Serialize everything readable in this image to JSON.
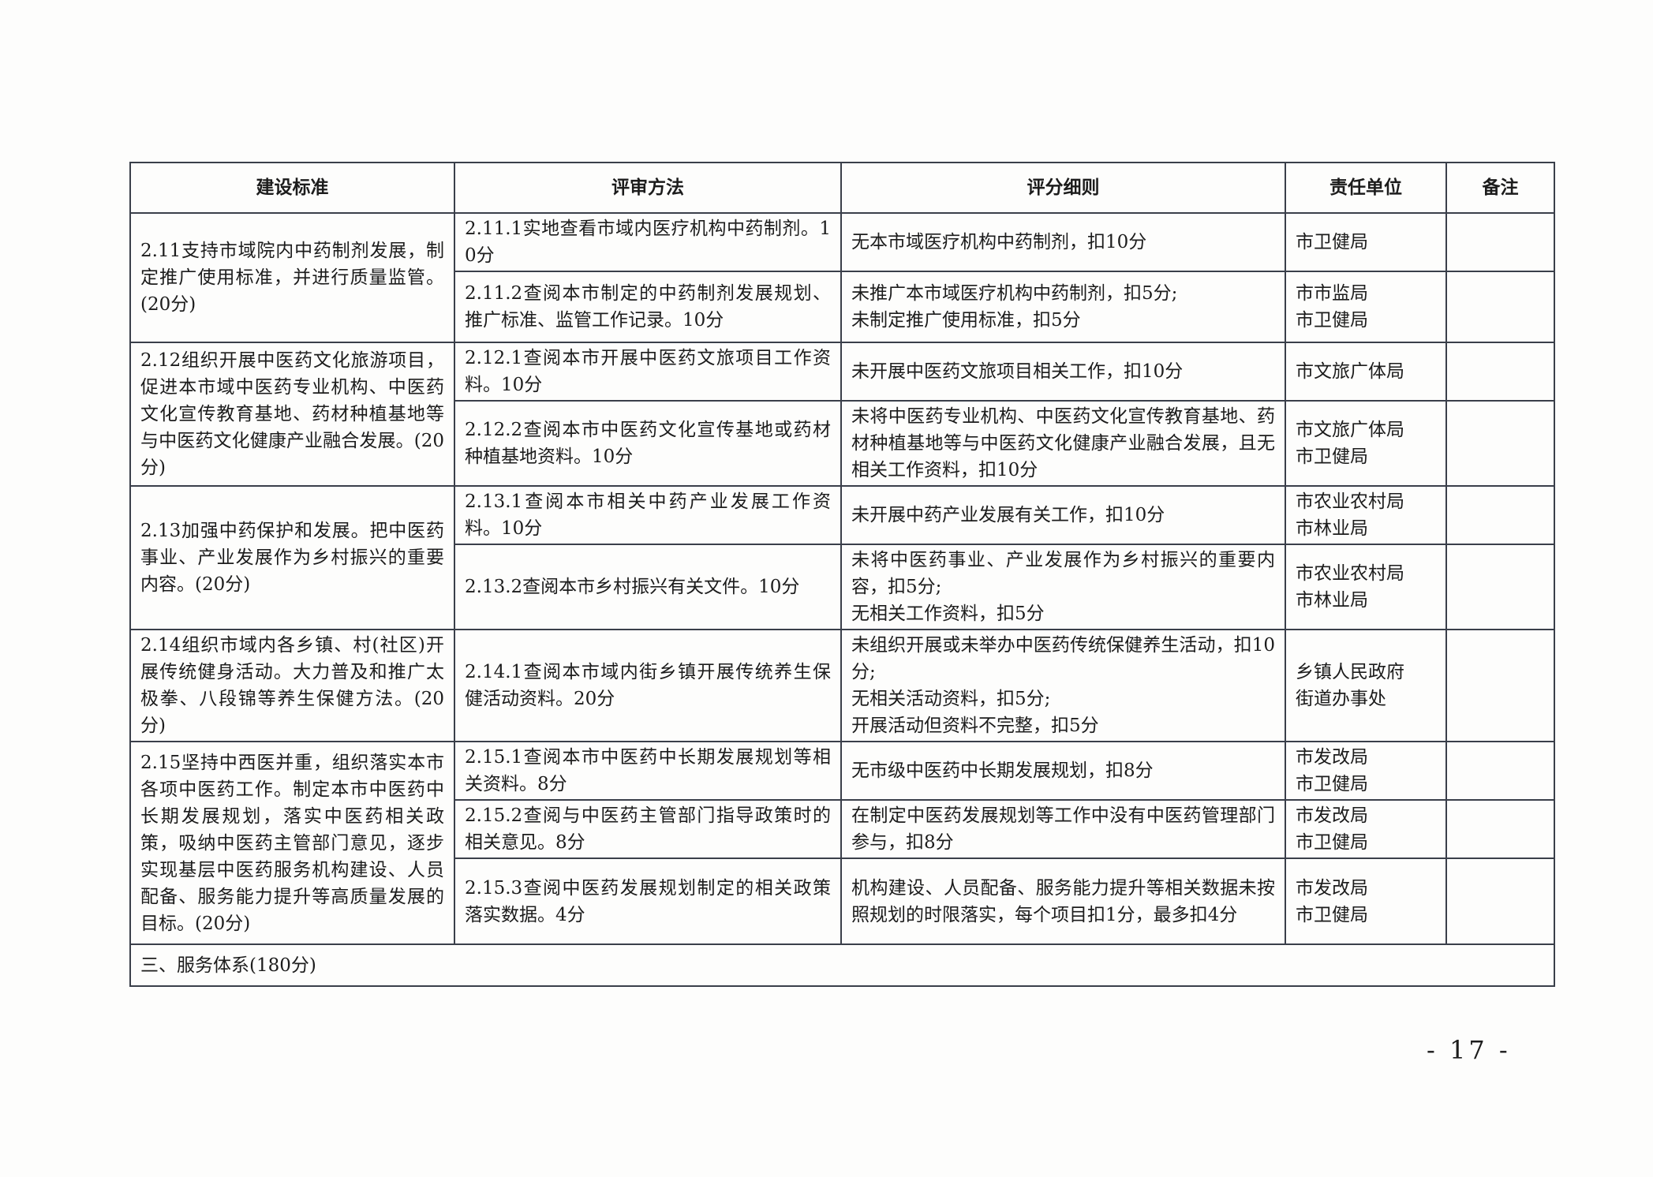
{
  "table": {
    "headers": [
      "建设标准",
      "评审方法",
      "评分细则",
      "责任单位",
      "备注"
    ],
    "groups": [
      {
        "standard": "2.11支持市域院内中药制剂发展，制定推广使用标准，并进行质量监管。(20分)",
        "items": [
          {
            "method": "2.11.1实地查看市域内医疗机构中药制剂。10分",
            "detail": "无本市域医疗机构中药制剂，扣10分",
            "unit": "市卫健局",
            "note": ""
          },
          {
            "method": "2.11.2查阅本市制定的中药制剂发展规划、推广标准、监管工作记录。10分",
            "detail": "未推广本市域医疗机构中药制剂，扣5分;\n未制定推广使用标准，扣5分",
            "unit": "市市监局\n市卫健局",
            "note": ""
          }
        ]
      },
      {
        "standard": "2.12组织开展中医药文化旅游项目，促进本市域中医药专业机构、中医药文化宣传教育基地、药材种植基地等与中医药文化健康产业融合发展。(20分)",
        "items": [
          {
            "method": "2.12.1查阅本市开展中医药文旅项目工作资料。10分",
            "detail": "未开展中医药文旅项目相关工作，扣10分",
            "unit": "市文旅广体局",
            "note": ""
          },
          {
            "method": "2.12.2查阅本市中医药文化宣传基地或药材种植基地资料。10分",
            "detail": "未将中医药专业机构、中医药文化宣传教育基地、药材种植基地等与中医药文化健康产业融合发展，且无相关工作资料，扣10分",
            "unit": "市文旅广体局\n市卫健局",
            "note": ""
          }
        ]
      },
      {
        "standard": "2.13加强中药保护和发展。把中医药事业、产业发展作为乡村振兴的重要内容。(20分)",
        "items": [
          {
            "method": "2.13.1查阅本市相关中药产业发展工作资料。10分",
            "detail": "未开展中药产业发展有关工作，扣10分",
            "unit": "市农业农村局\n市林业局",
            "note": ""
          },
          {
            "method": "2.13.2查阅本市乡村振兴有关文件。10分",
            "detail": "未将中医药事业、产业发展作为乡村振兴的重要内容，扣5分;\n无相关工作资料，扣5分",
            "unit": "市农业农村局\n市林业局",
            "note": ""
          }
        ]
      },
      {
        "standard": "2.14组织市域内各乡镇、村(社区)开展传统健身活动。大力普及和推广太极拳、八段锦等养生保健方法。(20分)",
        "items": [
          {
            "method": "2.14.1查阅本市域内街乡镇开展传统养生保健活动资料。20分",
            "detail": "未组织开展或未举办中医药传统保健养生活动，扣10分;\n无相关活动资料，扣5分;\n开展活动但资料不完整，扣5分",
            "unit": "乡镇人民政府\n街道办事处",
            "note": ""
          }
        ]
      },
      {
        "standard": "2.15坚持中西医并重，组织落实本市各项中医药工作。制定本市中医药中长期发展规划，落实中医药相关政策，吸纳中医药主管部门意见，逐步实现基层中医药服务机构建设、人员配备、服务能力提升等高质量发展的目标。(20分)",
        "items": [
          {
            "method": "2.15.1查阅本市中医药中长期发展规划等相关资料。8分",
            "detail": "无市级中医药中长期发展规划，扣8分",
            "unit": "市发改局\n市卫健局",
            "note": ""
          },
          {
            "method": "2.15.2查阅与中医药主管部门指导政策时的相关意见。8分",
            "detail": "在制定中医药发展规划等工作中没有中医药管理部门参与，扣8分",
            "unit": "市发改局\n市卫健局",
            "note": ""
          },
          {
            "method": "2.15.3查阅中医药发展规划制定的相关政策落实数据。4分",
            "detail": "机构建设、人员配备、服务能力提升等相关数据未按照规划的时限落实，每个项目扣1分，最多扣4分",
            "unit": "市发改局\n市卫健局",
            "note": ""
          }
        ]
      }
    ],
    "section_row": "三、服务体系(180分)"
  },
  "page_number": "- 17 -"
}
